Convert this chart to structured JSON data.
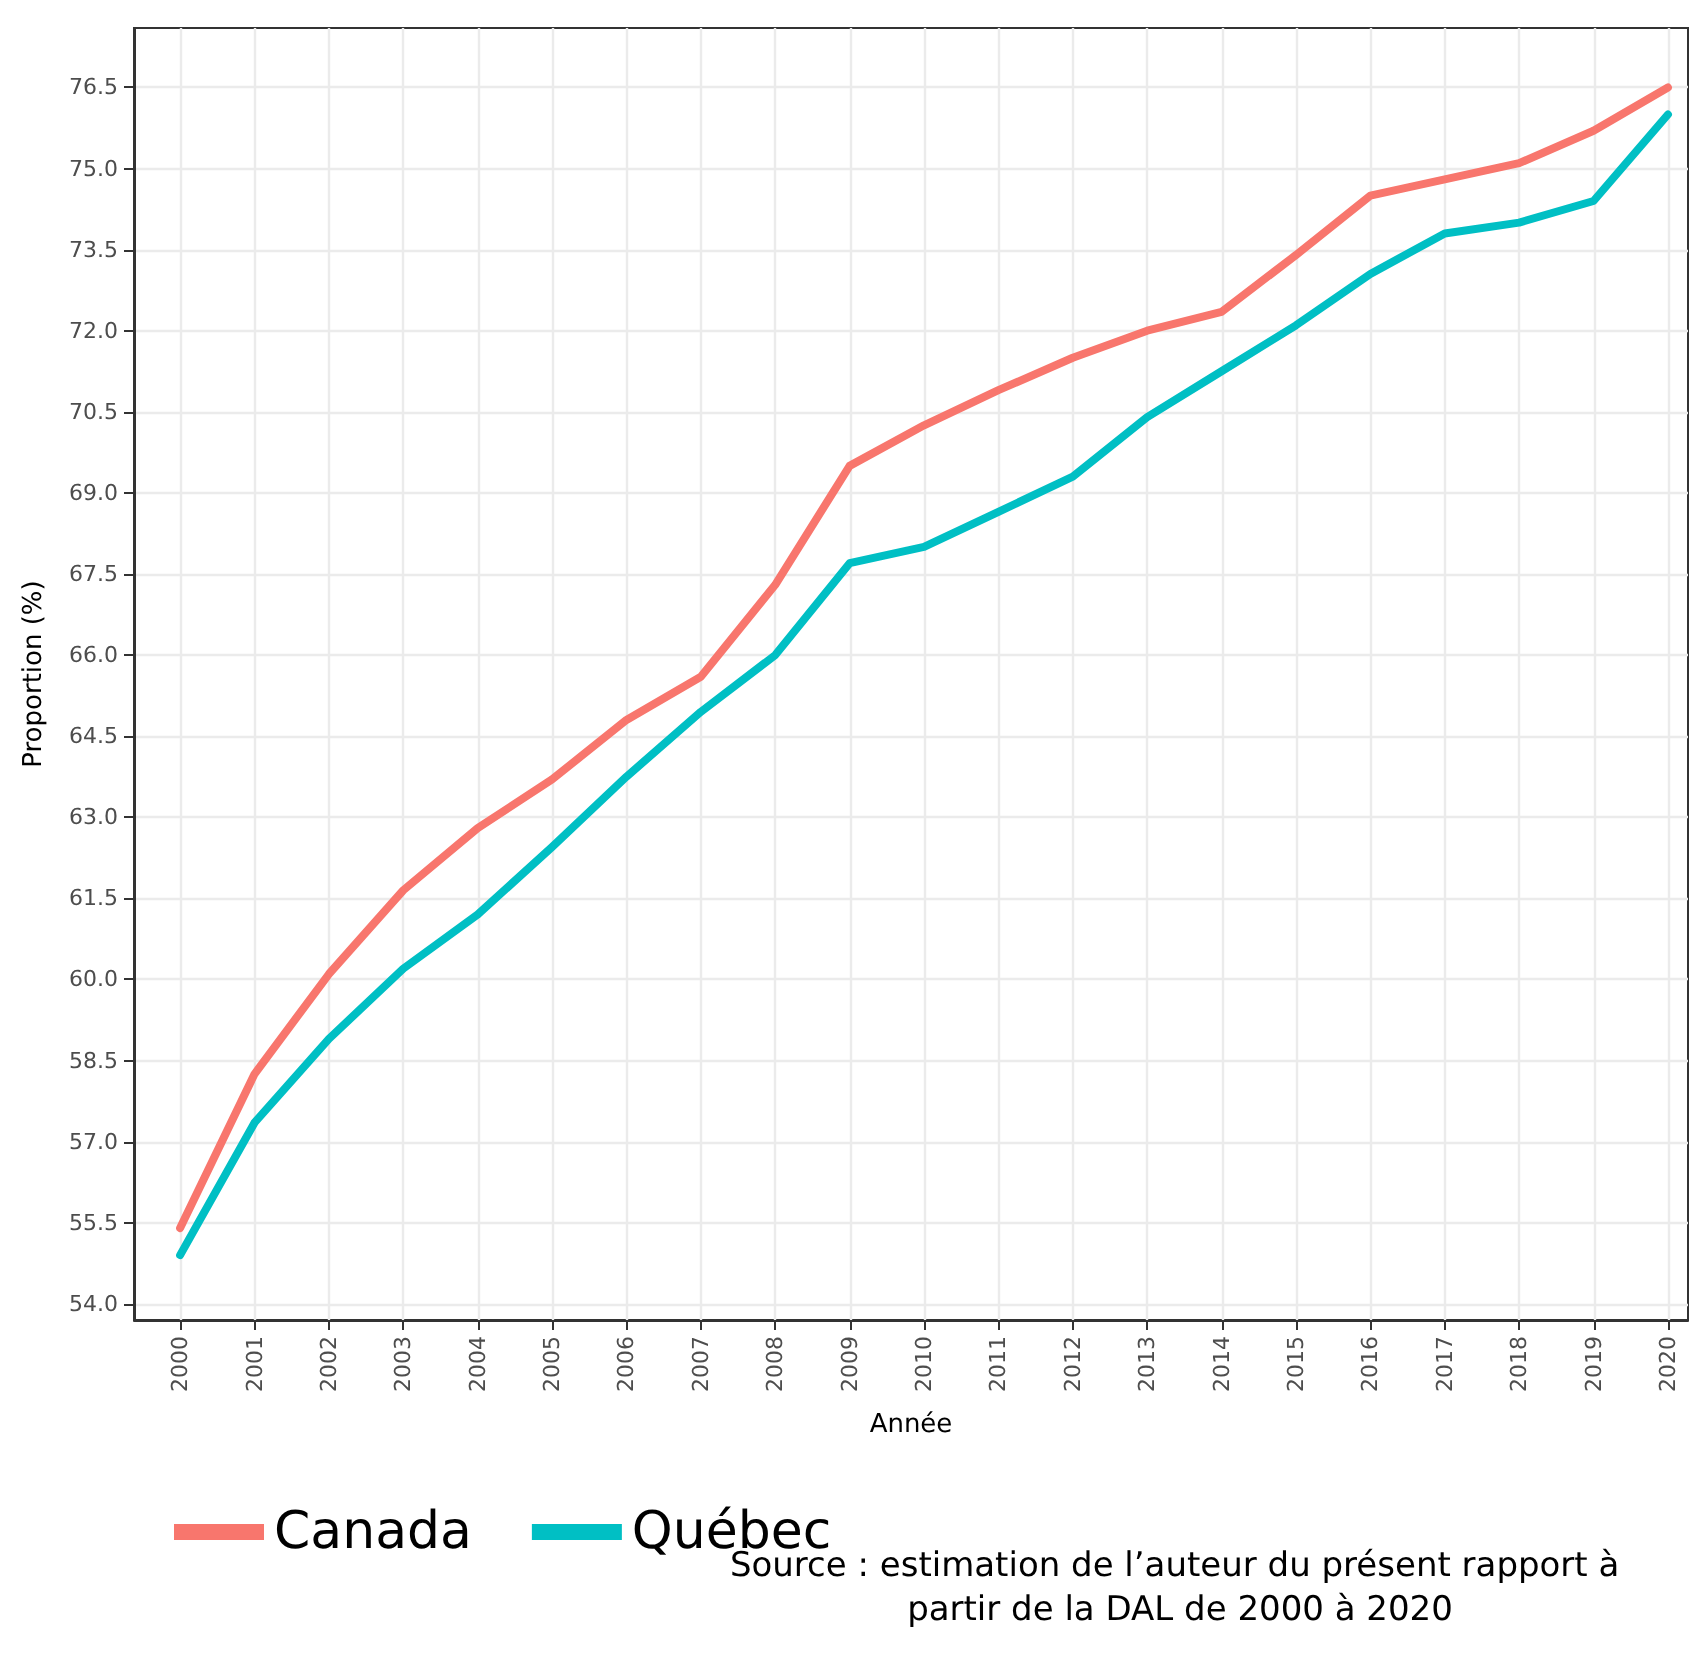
{
  "chart_data": {
    "type": "line",
    "xlabel": "Année",
    "ylabel": "Proportion (%)",
    "x": [
      2000,
      2001,
      2002,
      2003,
      2004,
      2005,
      2006,
      2007,
      2008,
      2009,
      2010,
      2011,
      2012,
      2013,
      2014,
      2015,
      2016,
      2017,
      2018,
      2019,
      2020
    ],
    "series": [
      {
        "name": "Canada",
        "color": "#f8766d",
        "values": [
          55.4,
          58.25,
          60.1,
          61.65,
          62.8,
          63.7,
          64.8,
          65.6,
          67.3,
          69.5,
          70.25,
          70.9,
          71.5,
          72.0,
          72.35,
          73.4,
          74.5,
          74.8,
          75.1,
          75.7,
          76.5
        ]
      },
      {
        "name": "Québec",
        "color": "#00bfc4",
        "values": [
          54.9,
          57.35,
          58.9,
          60.2,
          61.2,
          62.45,
          63.75,
          64.95,
          66.0,
          67.7,
          68.0,
          68.65,
          69.3,
          70.4,
          71.25,
          72.1,
          73.05,
          73.8,
          74.0,
          74.4,
          76.0
        ]
      }
    ],
    "xlim": [
      1999.38,
      2020.27
    ],
    "xticks": [
      2000,
      2001,
      2002,
      2003,
      2004,
      2005,
      2006,
      2007,
      2008,
      2009,
      2010,
      2011,
      2012,
      2013,
      2014,
      2015,
      2016,
      2017,
      2018,
      2019,
      2020
    ],
    "ylim": [
      53.7,
      77.6
    ],
    "yticks": [
      {
        "value": 54,
        "label": "54.0"
      },
      55.5,
      {
        "value": 57,
        "label": "57.0"
      },
      {
        "value": 58.5,
        "label": "58.5"
      },
      {
        "value": 60,
        "label": "60.0"
      },
      61.5,
      {
        "value": 63,
        "label": "63.0"
      },
      {
        "value": 64.5,
        "label": "64.5"
      },
      {
        "value": 66,
        "label": "66.0"
      },
      67.5,
      {
        "value": 69,
        "label": "69.0"
      },
      {
        "value": 70.5,
        "label": "70.5"
      },
      {
        "value": 72,
        "label": "72.0"
      },
      73.5,
      {
        "value": 75,
        "label": "75.0"
      },
      {
        "value": 76.5,
        "label": "76.5"
      }
    ],
    "grid": true,
    "legend": "bottom left",
    "marker": "none",
    "line_style": "solid",
    "annotations": [
      "Source : estimation de l’auteur du présent rapport à partir de la DAL de 2000 à 2020"
    ]
  }
}
